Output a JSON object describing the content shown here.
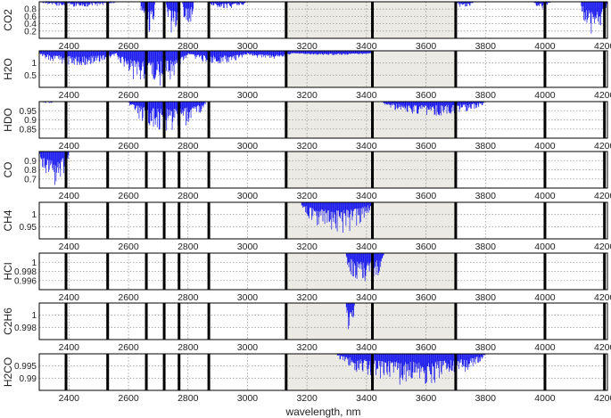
{
  "chart_data": [
    {
      "type": "line",
      "ylabel": "CO2",
      "ylim": [
        0,
        1.0
      ],
      "yticks": [
        "0.8",
        "0.6",
        "0.4",
        "0.2"
      ],
      "xlim": [
        2300,
        4210
      ],
      "xticks": [
        2400,
        2600,
        2800,
        3000,
        3200,
        3400,
        3600,
        3800,
        4000,
        4200
      ],
      "grid": true,
      "series": [
        {
          "color": "#1010ee",
          "bands": [
            [
              2300,
              2560,
              0.86
            ],
            [
              2640,
              2690,
              0.05
            ],
            [
              2725,
              2770,
              0.02
            ],
            [
              2780,
              2820,
              0.3
            ],
            [
              2860,
              3000,
              0.82
            ],
            [
              3700,
              3760,
              0.82
            ],
            [
              3960,
              4020,
              0.82
            ],
            [
              4120,
              4210,
              0.02
            ]
          ]
        }
      ]
    },
    {
      "type": "line",
      "ylabel": "H2O",
      "ylim": [
        0.2,
        1.05
      ],
      "yticks": [
        "1",
        "0.5"
      ],
      "xlim": [
        2300,
        4210
      ],
      "xticks": [
        2400,
        2600,
        2800,
        3000,
        3200,
        3400,
        3600,
        3800,
        4000,
        4200
      ],
      "grid": true,
      "series": [
        {
          "color": "#1010ee",
          "bands": [
            [
              2300,
              2560,
              0.7
            ],
            [
              2560,
              2800,
              0.2
            ],
            [
              2800,
              3000,
              0.75
            ],
            [
              3000,
              3150,
              0.85
            ],
            [
              3150,
              3420,
              0.95
            ]
          ]
        }
      ]
    },
    {
      "type": "line",
      "ylabel": "HDO",
      "ylim": [
        0.8,
        1.0
      ],
      "yticks": [
        "0.95",
        "0.9",
        "0.85"
      ],
      "xlim": [
        2300,
        4210
      ],
      "xticks": [
        2400,
        2600,
        2800,
        3000,
        3200,
        3400,
        3600,
        3800,
        4000,
        4200
      ],
      "grid": true,
      "series": [
        {
          "color": "#1010ee",
          "bands": [
            [
              2300,
              2350,
              0.99
            ],
            [
              2600,
              2860,
              0.84
            ],
            [
              3450,
              3800,
              0.92
            ]
          ]
        }
      ]
    },
    {
      "type": "line",
      "ylabel": "CO",
      "ylim": [
        0.65,
        1.0
      ],
      "yticks": [
        "0.9",
        "0.8",
        "0.7"
      ],
      "xlim": [
        2300,
        4210
      ],
      "xticks": [
        2400,
        2600,
        2800,
        3000,
        3200,
        3400,
        3600,
        3800,
        4000,
        4200
      ],
      "grid": true,
      "series": [
        {
          "color": "#1010ee",
          "bands": [
            [
              2300,
              2400,
              0.66
            ]
          ]
        }
      ]
    },
    {
      "type": "line",
      "ylabel": "CH4",
      "ylim": [
        0.92,
        1.0
      ],
      "yticks": [
        "1",
        "0.95"
      ],
      "xlim": [
        2300,
        4210
      ],
      "xticks": [
        2400,
        2600,
        2800,
        3000,
        3200,
        3400,
        3600,
        3800,
        4000,
        4200
      ],
      "grid": true,
      "series": [
        {
          "color": "#1010ee",
          "bands": [
            [
              3180,
              3420,
              0.93
            ]
          ]
        }
      ]
    },
    {
      "type": "line",
      "ylabel": "HCl",
      "ylim": [
        0.9955,
        1.0
      ],
      "yticks": [
        "1",
        "0.998",
        "0.996"
      ],
      "xlim": [
        2300,
        4210
      ],
      "xticks": [
        2400,
        2600,
        2800,
        3000,
        3200,
        3400,
        3600,
        3800,
        4000,
        4200
      ],
      "grid": true,
      "series": [
        {
          "color": "#1010ee",
          "bands": [
            [
              3330,
              3460,
              0.9955
            ]
          ]
        }
      ]
    },
    {
      "type": "line",
      "ylabel": "C2H6",
      "ylim": [
        0.997,
        1.0
      ],
      "yticks": [
        "1",
        "0.998"
      ],
      "xlim": [
        2300,
        4210
      ],
      "xticks": [
        2400,
        2600,
        2800,
        3000,
        3200,
        3400,
        3600,
        3800,
        4000,
        4200
      ],
      "grid": true,
      "series": [
        {
          "color": "#1010ee",
          "bands": [
            [
              3330,
              3360,
              0.997
            ]
          ]
        }
      ]
    },
    {
      "type": "line",
      "ylabel": "H2CO",
      "ylim": [
        0.986,
        1.0
      ],
      "yticks": [
        "0.995",
        "0.99"
      ],
      "xlim": [
        2300,
        4210
      ],
      "xticks": [
        2400,
        2600,
        2800,
        3000,
        3200,
        3400,
        3600,
        3800,
        4000,
        4200
      ],
      "xlabel": "wavelength, nm",
      "grid": true,
      "series": [
        {
          "color": "#1010ee",
          "bands": [
            [
              3300,
              3800,
              0.988
            ]
          ]
        }
      ]
    }
  ],
  "shaded_region": {
    "xmin": 3130,
    "xmax": 3700,
    "color": "#eceae4"
  },
  "window_markers": {
    "x": [
      2390,
      2530,
      2660,
      2720,
      2770,
      2870,
      3130,
      3420,
      3700,
      4000,
      4200
    ],
    "color": "#000000"
  }
}
